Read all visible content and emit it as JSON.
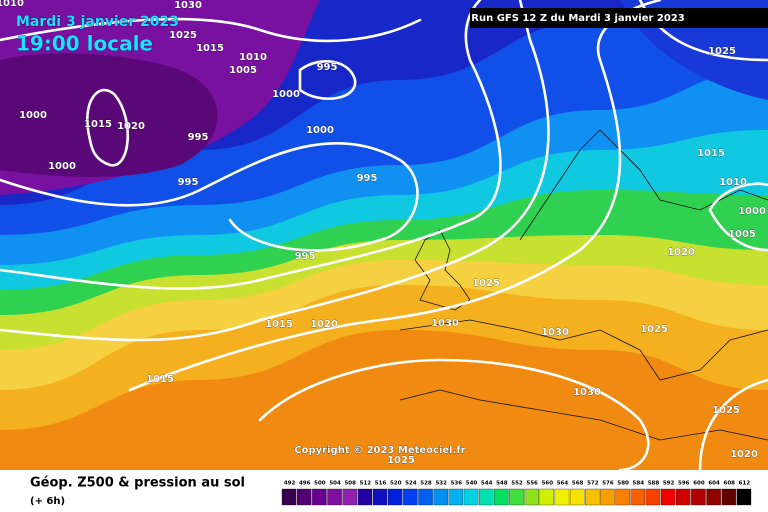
{
  "header": {
    "date": "Mardi 3 janvier 2023",
    "time": "19:00 locale",
    "run": "Run GFS 12 Z du Mardi 3 janvier 2023"
  },
  "isobar_labels": [
    "1010",
    "1030",
    "1025",
    "1015",
    "1010",
    "1005",
    "995",
    "1000",
    "1000",
    "1015",
    "1020",
    "995",
    "1000",
    "1000",
    "995",
    "995",
    "995",
    "1025",
    "1015",
    "1010",
    "1000",
    "1005",
    "1020",
    "1025",
    "1015",
    "1020",
    "1030",
    "1030",
    "1025",
    "1015",
    "1030",
    "1025",
    "1020",
    "1025"
  ],
  "copyright": "Copyright © 2023 Meteociel.fr",
  "footer": {
    "title": "Géop. Z500 & pression au sol",
    "step": "(+ 6h)"
  },
  "legend": {
    "values": [
      492,
      496,
      500,
      504,
      508,
      512,
      516,
      520,
      524,
      528,
      532,
      536,
      540,
      544,
      548,
      552,
      556,
      560,
      564,
      568,
      572,
      576,
      580,
      584,
      588,
      592,
      596,
      600,
      604,
      608,
      612
    ],
    "colors": [
      "#3a0050",
      "#500070",
      "#6a0090",
      "#8010a0",
      "#9020b0",
      "#2000a0",
      "#1010c0",
      "#0020e0",
      "#0040f0",
      "#0060f0",
      "#0090f0",
      "#00b0f0",
      "#00d0e0",
      "#00e0b0",
      "#00e060",
      "#40e040",
      "#90e020",
      "#d0f000",
      "#f0f000",
      "#f8e000",
      "#f8c000",
      "#f8a000",
      "#f88000",
      "#f86000",
      "#f84000",
      "#f00000",
      "#d00000",
      "#b00000",
      "#900000",
      "#600000",
      "#000000"
    ]
  }
}
